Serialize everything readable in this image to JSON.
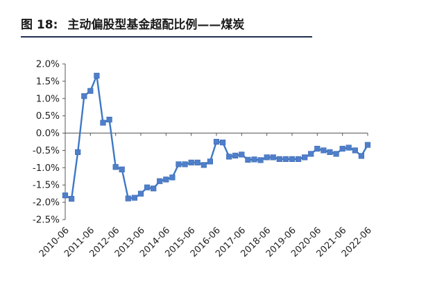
{
  "figure": {
    "number": "图 18:",
    "title": "主动偏股型基金超配比例——煤炭"
  },
  "chart_data": {
    "type": "line",
    "title": "",
    "xlabel": "",
    "ylabel": "",
    "ylim": [
      -0.025,
      0.02
    ],
    "yticks": [
      0.02,
      0.015,
      0.01,
      0.005,
      0.0,
      -0.005,
      -0.01,
      -0.015,
      -0.02,
      -0.025
    ],
    "ytick_labels": [
      "2.0%",
      "1.5%",
      "1.0%",
      "0.5%",
      "0.0%",
      "-0.5%",
      "-1.0%",
      "-1.5%",
      "-2.0%",
      "-2.5%"
    ],
    "xtick_labels": [
      "2010-06",
      "2011-06",
      "2012-06",
      "2013-06",
      "2014-06",
      "2015-06",
      "2016-06",
      "2017-06",
      "2018-06",
      "2019-06",
      "2020-06",
      "2021-06",
      "2022-06"
    ],
    "line_color": "#3d78c4",
    "marker_color": "#4f7fca",
    "x": [
      "2010-06",
      "2010-09",
      "2010-12",
      "2011-03",
      "2011-06",
      "2011-09",
      "2011-12",
      "2012-03",
      "2012-06",
      "2012-09",
      "2012-12",
      "2013-03",
      "2013-06",
      "2013-09",
      "2013-12",
      "2014-03",
      "2014-06",
      "2014-09",
      "2014-12",
      "2015-03",
      "2015-06",
      "2015-09",
      "2015-12",
      "2016-03",
      "2016-06",
      "2016-09",
      "2016-12",
      "2017-03",
      "2017-06",
      "2017-09",
      "2017-12",
      "2018-03",
      "2018-06",
      "2018-09",
      "2018-12",
      "2019-03",
      "2019-06",
      "2019-09",
      "2019-12",
      "2020-03",
      "2020-06",
      "2020-09",
      "2020-12",
      "2021-03",
      "2021-06",
      "2021-09",
      "2021-12",
      "2022-03",
      "2022-06"
    ],
    "values": [
      -0.018,
      -0.019,
      -0.0055,
      0.0107,
      0.0122,
      0.0166,
      0.003,
      0.0039,
      -0.0098,
      -0.0105,
      -0.0189,
      -0.0187,
      -0.0175,
      -0.0157,
      -0.016,
      -0.0139,
      -0.0134,
      -0.0128,
      -0.009,
      -0.009,
      -0.0085,
      -0.0085,
      -0.0092,
      -0.0082,
      -0.0025,
      -0.0027,
      -0.0068,
      -0.0065,
      -0.0062,
      -0.0077,
      -0.0076,
      -0.0078,
      -0.007,
      -0.007,
      -0.0075,
      -0.0075,
      -0.0075,
      -0.0075,
      -0.007,
      -0.006,
      -0.0045,
      -0.005,
      -0.0055,
      -0.006,
      -0.0045,
      -0.0042,
      -0.005,
      -0.0066,
      -0.0034
    ]
  }
}
